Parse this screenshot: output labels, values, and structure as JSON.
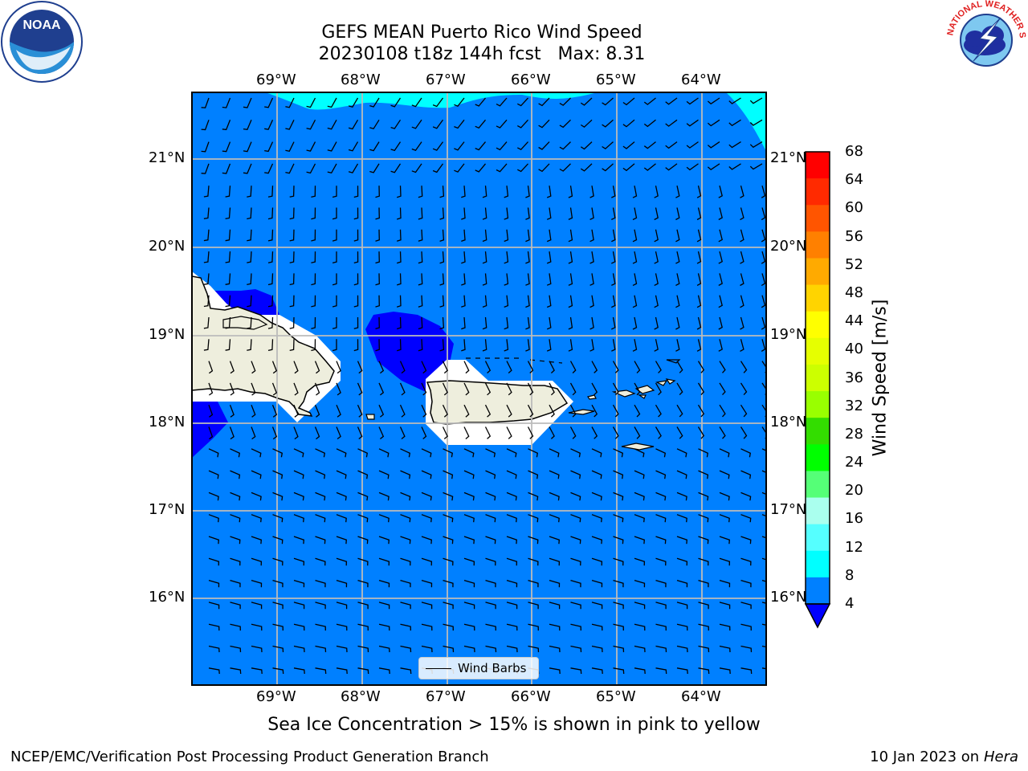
{
  "header": {
    "title_line1": "GEFS MEAN Puerto Rico Wind Speed",
    "title_line2": "20230108 t18z 144h fcst   Max: 8.31"
  },
  "logos": {
    "noaa_text": "NOAA",
    "nws_text": "NATIONAL WEATHER SERVICE"
  },
  "map": {
    "lon_labels": [
      "69°W",
      "68°W",
      "67°W",
      "66°W",
      "65°W",
      "64°W"
    ],
    "lat_labels": [
      "21°N",
      "20°N",
      "19°N",
      "18°N",
      "17°N",
      "16°N"
    ],
    "ocean_color": "#0080ff",
    "calm_color": "#0000ff",
    "strong_color": "#00ffff",
    "land_color": "#eeeedd",
    "legend_label": "Wind Barbs"
  },
  "colorbar": {
    "title": "Wind Speed [m/s]",
    "ticks": [
      "68",
      "64",
      "60",
      "56",
      "52",
      "48",
      "44",
      "40",
      "36",
      "32",
      "28",
      "24",
      "20",
      "16",
      "12",
      "8",
      "4"
    ],
    "bins": [
      "#ff0000",
      "#ff2a00",
      "#ff5500",
      "#ff8000",
      "#ffaa00",
      "#ffd400",
      "#ffff00",
      "#e6ff00",
      "#ccff00",
      "#99ff00",
      "#33dd00",
      "#00ff00",
      "#55ff77",
      "#aaffee",
      "#55ffff",
      "#00ffff",
      "#0080ff"
    ],
    "under_color": "#0000ff"
  },
  "caption": "Sea Ice Concentration > 15% is shown in pink to yellow",
  "footer": {
    "left": "NCEP/EMC/Verification Post Processing Product Generation Branch",
    "right_prefix": "10 Jan 2023 on ",
    "right_host": "Hera"
  }
}
